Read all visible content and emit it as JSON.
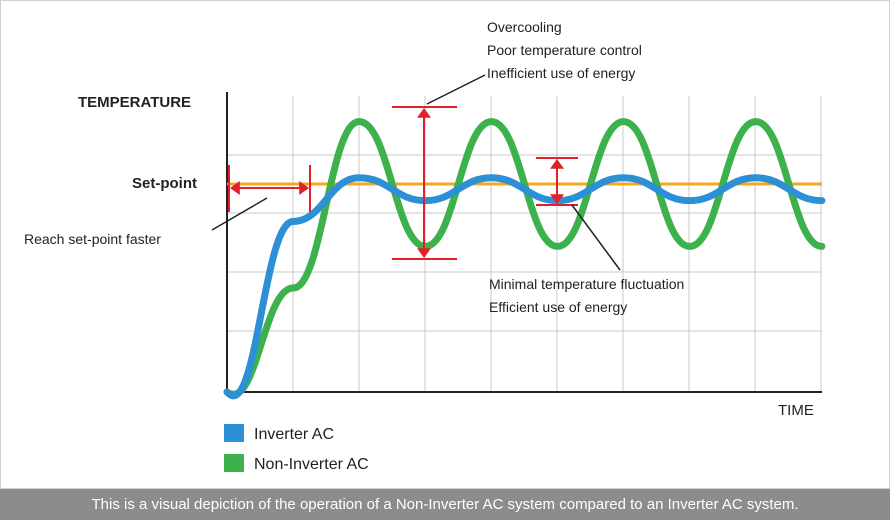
{
  "chart_data": {
    "type": "line",
    "ylabel": "TEMPERATURE",
    "xlabel": "TIME",
    "setpoint_label": "Set-point",
    "grid": true,
    "legend_position": "bottom-left",
    "series": [
      {
        "name": "Inverter AC",
        "color": "#2d8fd5",
        "x": [
          0,
          1,
          2,
          3,
          4,
          5,
          6,
          7,
          8,
          9
        ],
        "y": [
          0,
          0.82,
          1.03,
          0.92,
          1.03,
          0.92,
          1.03,
          0.92,
          1.03,
          0.92
        ]
      },
      {
        "name": "Non-Inverter AC",
        "color": "#3db14b",
        "x": [
          0,
          1,
          2,
          3,
          4,
          5,
          6,
          7,
          8,
          9
        ],
        "y": [
          0,
          0.5,
          1.3,
          0.7,
          1.3,
          0.7,
          1.3,
          0.7,
          1.3,
          0.7
        ]
      }
    ],
    "setpoint_color": "#f5a623",
    "annotation_color": "#e0202a",
    "annotations": {
      "overcooling": [
        "Overcooling",
        "Poor temperature control",
        "Inefficient use of energy"
      ],
      "minimal": [
        "Minimal temperature fluctuation",
        "Efficient use of energy"
      ],
      "reach": "Reach set-point faster"
    }
  },
  "caption": "This is a visual depiction of the operation of a Non-Inverter AC system compared to an Inverter AC system."
}
